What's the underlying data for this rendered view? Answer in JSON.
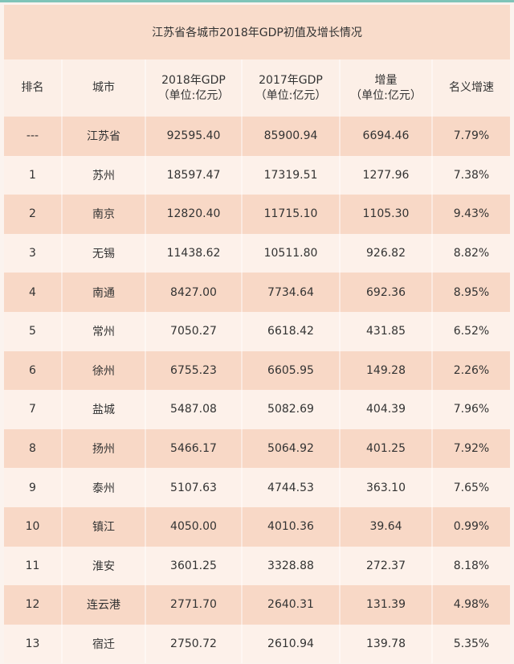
{
  "title": "江苏省各城市2018年GDP初值及增长情况",
  "colors": {
    "accent_row": "#f8d8c6",
    "light_row": "#fdf1ea",
    "title_bg": "#f9dccb"
  },
  "columns": [
    {
      "line1": "排名",
      "line2": ""
    },
    {
      "line1": "城市",
      "line2": ""
    },
    {
      "line1": "2018年GDP",
      "line2": "（单位:亿元）"
    },
    {
      "line1": "2017年GDP",
      "line2": "（单位:亿元）"
    },
    {
      "line1": "增量",
      "line2": "（单位:亿元）"
    },
    {
      "line1": "名义增速",
      "line2": ""
    }
  ],
  "rows": [
    [
      "---",
      "江苏省",
      "92595.40",
      "85900.94",
      "6694.46",
      "7.79%"
    ],
    [
      "1",
      "苏州",
      "18597.47",
      "17319.51",
      "1277.96",
      "7.38%"
    ],
    [
      "2",
      "南京",
      "12820.40",
      "11715.10",
      "1105.30",
      "9.43%"
    ],
    [
      "3",
      "无锡",
      "11438.62",
      "10511.80",
      "926.82",
      "8.82%"
    ],
    [
      "4",
      "南通",
      "8427.00",
      "7734.64",
      "692.36",
      "8.95%"
    ],
    [
      "5",
      "常州",
      "7050.27",
      "6618.42",
      "431.85",
      "6.52%"
    ],
    [
      "6",
      "徐州",
      "6755.23",
      "6605.95",
      "149.28",
      "2.26%"
    ],
    [
      "7",
      "盐城",
      "5487.08",
      "5082.69",
      "404.39",
      "7.96%"
    ],
    [
      "8",
      "扬州",
      "5466.17",
      "5064.92",
      "401.25",
      "7.92%"
    ],
    [
      "9",
      "泰州",
      "5107.63",
      "4744.53",
      "363.10",
      "7.65%"
    ],
    [
      "10",
      "镇江",
      "4050.00",
      "4010.36",
      "39.64",
      "0.99%"
    ],
    [
      "11",
      "淮安",
      "3601.25",
      "3328.88",
      "272.37",
      "8.18%"
    ],
    [
      "12",
      "连云港",
      "2771.70",
      "2640.31",
      "131.39",
      "4.98%"
    ],
    [
      "13",
      "宿迁",
      "2750.72",
      "2610.94",
      "139.78",
      "5.35%"
    ]
  ]
}
